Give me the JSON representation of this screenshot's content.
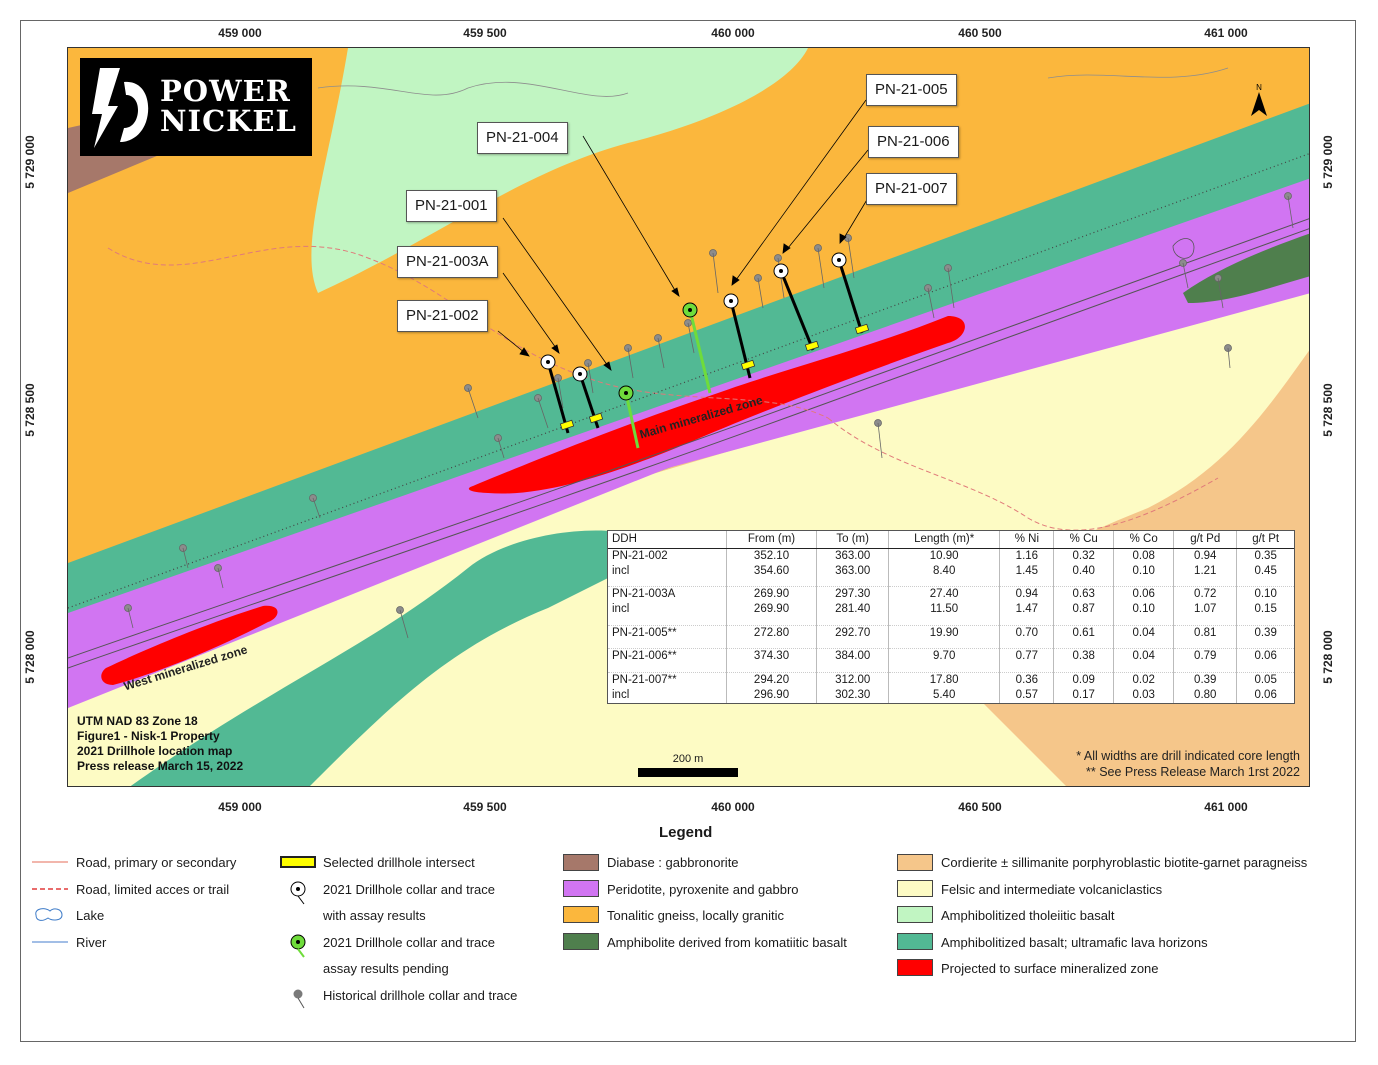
{
  "logo": {
    "line1": "POWER",
    "line2": "NICKEL"
  },
  "coords": {
    "x_ticks": [
      "459 000",
      "459 500",
      "460 000",
      "460 500",
      "461 000"
    ],
    "y_ticks": [
      "5 729 000",
      "5 728 500",
      "5 728 000"
    ]
  },
  "drillholes": {
    "pn001": "PN-21-001",
    "pn002": "PN-21-002",
    "pn003a": "PN-21-003A",
    "pn004": "PN-21-004",
    "pn005": "PN-21-005",
    "pn006": "PN-21-006",
    "pn007": "PN-21-007"
  },
  "zones": {
    "main": "Main mineralized zone",
    "west": "West mineralized zone"
  },
  "info": {
    "line1": "UTM NAD 83 Zone 18",
    "line2": "Figure1 - Nisk-1 Property",
    "line3": "2021 Drillhole location map",
    "line4": "Press release March 15, 2022"
  },
  "notes": {
    "line1": "* All widths are drill indicated core length",
    "line2": "** See Press Release March 1rst 2022"
  },
  "scale": {
    "label": "200 m"
  },
  "north": {
    "label": "N"
  },
  "assay_table": {
    "headers": [
      "DDH",
      "From (m)",
      "To (m)",
      "Length (m)*",
      "% Ni",
      "% Cu",
      "% Co",
      "g/t Pd",
      "g/t Pt"
    ],
    "groups": [
      [
        [
          "PN-21-002",
          "352.10",
          "363.00",
          "10.90",
          "1.16",
          "0.32",
          "0.08",
          "0.94",
          "0.35"
        ],
        [
          "incl",
          "354.60",
          "363.00",
          "8.40",
          "1.45",
          "0.40",
          "0.10",
          "1.21",
          "0.45"
        ]
      ],
      [
        [
          "PN-21-003A",
          "269.90",
          "297.30",
          "27.40",
          "0.94",
          "0.63",
          "0.06",
          "0.72",
          "0.10"
        ],
        [
          "incl",
          "269.90",
          "281.40",
          "11.50",
          "1.47",
          "0.87",
          "0.10",
          "1.07",
          "0.15"
        ]
      ],
      [
        [
          "PN-21-005**",
          "272.80",
          "292.70",
          "19.90",
          "0.70",
          "0.61",
          "0.04",
          "0.81",
          "0.39"
        ]
      ],
      [
        [
          "PN-21-006**",
          "374.30",
          "384.00",
          "9.70",
          "0.77",
          "0.38",
          "0.04",
          "0.79",
          "0.06"
        ]
      ],
      [
        [
          "PN-21-007**",
          "294.20",
          "312.00",
          "17.80",
          "0.36",
          "0.09",
          "0.02",
          "0.39",
          "0.05"
        ],
        [
          "incl",
          "296.90",
          "302.30",
          "5.40",
          "0.57",
          "0.17",
          "0.03",
          "0.80",
          "0.06"
        ]
      ]
    ]
  },
  "legend": {
    "title": "Legend",
    "col1": [
      "Road, primary or secondary",
      "Road, limited acces or trail",
      "Lake",
      "River"
    ],
    "col2": [
      "Selected drillhole intersect",
      "2021 Drillhole collar and trace",
      "with assay results",
      "2021 Drillhole collar and trace",
      "assay results pending",
      "Historical drillhole collar and trace"
    ],
    "col3": [
      "Diabase : gabbronorite",
      "Peridotite, pyroxenite and gabbro",
      "Tonalitic gneiss, locally granitic",
      "Amphibolite derived from komatiitic basalt"
    ],
    "col4": [
      "Cordierite ± sillimanite porphyroblastic biotite-garnet paragneiss",
      "Felsic and intermediate volcaniclastics",
      "Amphibolitized tholeiitic basalt",
      "Amphibolitized basalt; ultramafic lava horizons",
      "Projected to surface mineralized zone"
    ]
  },
  "colors": {
    "diabase": "#a6786a",
    "peridotite": "#d175f2",
    "tonalite": "#fbb73d",
    "komatiite": "#4f7f4d",
    "paragneiss": "#f5c68a",
    "volcaniclastic": "#fdfbc4",
    "tholeiite": "#c1f5c2",
    "basalt": "#52b994",
    "mineralized": "#ff0000",
    "intersect": "#ffff00",
    "pending": "#6fdc3b"
  }
}
